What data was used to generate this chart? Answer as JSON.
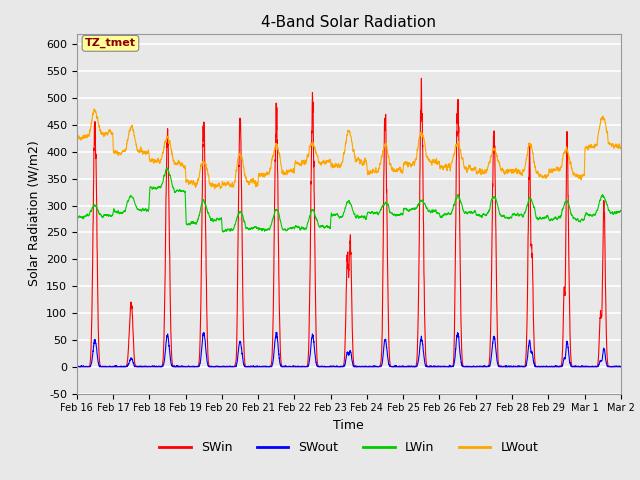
{
  "title": "4-Band Solar Radiation",
  "xlabel": "Time",
  "ylabel": "Solar Radiation (W/m2)",
  "ylim": [
    -50,
    620
  ],
  "yticks": [
    -50,
    0,
    50,
    100,
    150,
    200,
    250,
    300,
    350,
    400,
    450,
    500,
    550,
    600
  ],
  "fig_bg_color": "#e8e8e8",
  "plot_bg_color": "#e8e8e8",
  "annotation_text": "TZ_tmet",
  "annotation_color": "#8b0000",
  "annotation_bg": "#ffff99",
  "series": {
    "SWin": {
      "color": "#ff0000",
      "lw": 0.8
    },
    "SWout": {
      "color": "#0000ff",
      "lw": 0.8
    },
    "LWin": {
      "color": "#00cc00",
      "lw": 0.8
    },
    "LWout": {
      "color": "#ffa500",
      "lw": 0.8
    }
  },
  "xtick_labels": [
    "Feb 16",
    "Feb 17",
    "Feb 18",
    "Feb 19",
    "Feb 20",
    "Feb 21",
    "Feb 22",
    "Feb 23",
    "Feb 24",
    "Feb 25",
    "Feb 26",
    "Feb 27",
    "Feb 28",
    "Feb 29",
    "Mar 1",
    "Mar 2"
  ],
  "n_days": 15,
  "pts_per_day": 288
}
